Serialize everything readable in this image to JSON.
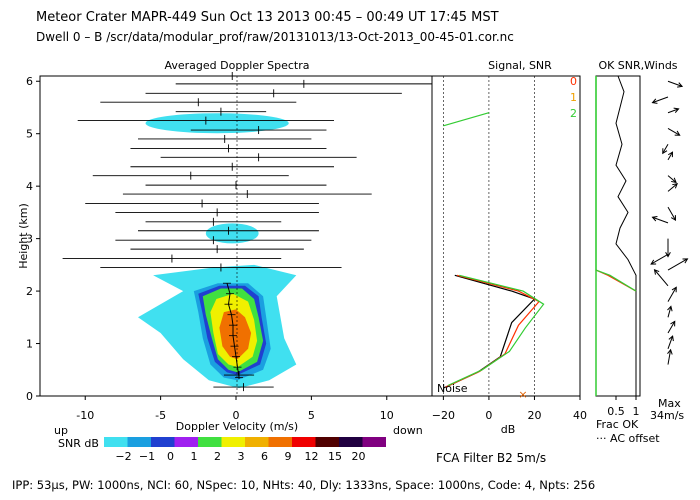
{
  "header": {
    "line1": "Meteor Crater   MAPR-449   Sun Oct 13 2013 00:45 – 00:49 UT 17:45 MST",
    "line2": "Dwell   0 –   B    /scr/data/modular_prof/raw/20131013/13-Oct-2013_00-45-01.cor.nc"
  },
  "footer": {
    "params": "IPP:  53μs,   PW: 1000ns,   NCI:  60,   NSpec: 10,  NHts: 40,   Dly: 1333ns,   Space: 1000ns,   Code: 4,   Npts: 256"
  },
  "colors": {
    "cbar": [
      "#40e0f0",
      "#1a9fe0",
      "#2040d0",
      "#a020f0",
      "#40e040",
      "#f0f000",
      "#f0b000",
      "#f07000",
      "#f00000",
      "#500000",
      "#200040",
      "#800080"
    ],
    "snr0": "#000000",
    "snr1": "#ff3000",
    "snr2": "#33cc33"
  },
  "chart_data": [
    {
      "type": "heatmap",
      "title": "Averaged Doppler Spectra",
      "xlabel": "Doppler Velocity (m/s)",
      "ylabel": "Height (km)",
      "xlim": [
        -13,
        13
      ],
      "ylim": [
        0,
        6.1
      ],
      "xticks": [
        "-10",
        "-5",
        "0",
        "5",
        "10"
      ],
      "yticks": [
        "0",
        "1",
        "2",
        "3",
        "4",
        "5",
        "6"
      ],
      "direction_left": "up",
      "direction_right": "down",
      "colorbar_label": "SNR dB",
      "colorbar_ticks": [
        "−2",
        "−1",
        "0",
        "1",
        "2",
        "3",
        "6",
        "9",
        "12",
        "15",
        "20"
      ],
      "noise_label": "Noise",
      "mean_velocity": [
        {
          "h": 0.35,
          "v": 0.2
        },
        {
          "h": 0.55,
          "v": 0.1
        },
        {
          "h": 0.75,
          "v": 0.0
        },
        {
          "h": 0.95,
          "v": -0.1
        },
        {
          "h": 1.15,
          "v": -0.2
        },
        {
          "h": 1.35,
          "v": -0.2
        },
        {
          "h": 1.55,
          "v": -0.3
        },
        {
          "h": 1.75,
          "v": -0.5
        },
        {
          "h": 1.95,
          "v": -0.4
        },
        {
          "h": 2.15,
          "v": -0.6
        }
      ],
      "velocity_error_bars": [
        {
          "h": 0.17,
          "lo": -1.5,
          "hi": 2.5
        },
        {
          "h": 0.4,
          "lo": -0.8,
          "hi": 1.2
        },
        {
          "h": 2.45,
          "lo": -9.0,
          "hi": 7.0
        },
        {
          "h": 2.62,
          "lo": -11.5,
          "hi": 3.0
        },
        {
          "h": 2.8,
          "lo": -7.0,
          "hi": 4.5
        },
        {
          "h": 2.97,
          "lo": -8.0,
          "hi": 5.0
        },
        {
          "h": 3.15,
          "lo": -6.5,
          "hi": 5.5
        },
        {
          "h": 3.32,
          "lo": -6.0,
          "hi": 3.0
        },
        {
          "h": 3.5,
          "lo": -8.0,
          "hi": 5.5
        },
        {
          "h": 3.67,
          "lo": -10.0,
          "hi": 5.5
        },
        {
          "h": 3.85,
          "lo": -7.5,
          "hi": 9.0
        },
        {
          "h": 4.02,
          "lo": -6.0,
          "hi": 6.0
        },
        {
          "h": 4.2,
          "lo": -9.5,
          "hi": 3.5
        },
        {
          "h": 4.37,
          "lo": -7.0,
          "hi": 6.5
        },
        {
          "h": 4.55,
          "lo": -5.0,
          "hi": 8.0
        },
        {
          "h": 4.72,
          "lo": -7.0,
          "hi": 6.0
        },
        {
          "h": 4.9,
          "lo": -6.5,
          "hi": 5.0
        },
        {
          "h": 5.07,
          "lo": -3.0,
          "hi": 6.0
        },
        {
          "h": 5.25,
          "lo": -10.5,
          "hi": 6.5
        },
        {
          "h": 5.42,
          "lo": -4.0,
          "hi": 2.0
        },
        {
          "h": 5.6,
          "lo": -9.0,
          "hi": 4.0
        },
        {
          "h": 5.77,
          "lo": -6.0,
          "hi": 11.0
        },
        {
          "h": 5.95,
          "lo": -4.0,
          "hi": 13.0
        },
        {
          "h": 6.1,
          "lo": -11.5,
          "hi": 11.0
        }
      ],
      "contours": [
        {
          "snr": "-2",
          "points": [
            [
              0.2,
              0.15
            ],
            [
              2.2,
              0.3
            ],
            [
              4.0,
              0.6
            ],
            [
              3.2,
              1.1
            ],
            [
              2.7,
              1.9
            ],
            [
              4.0,
              2.3
            ],
            [
              1.2,
              2.5
            ],
            [
              -1.5,
              2.45
            ],
            [
              -5.5,
              2.3
            ],
            [
              -3.5,
              2.0
            ],
            [
              -6.5,
              1.5
            ],
            [
              -5.0,
              1.2
            ],
            [
              -3.5,
              0.7
            ],
            [
              -1.8,
              0.3
            ]
          ]
        },
        {
          "snr": "-1",
          "points": [
            [
              0.1,
              0.3
            ],
            [
              1.8,
              0.5
            ],
            [
              2.3,
              0.9
            ],
            [
              2.0,
              1.5
            ],
            [
              1.8,
              1.9
            ],
            [
              0.8,
              2.15
            ],
            [
              -1.2,
              2.15
            ],
            [
              -2.8,
              2.0
            ],
            [
              -2.5,
              1.6
            ],
            [
              -2.2,
              1.1
            ],
            [
              -1.7,
              0.6
            ],
            [
              -0.8,
              0.35
            ]
          ]
        },
        {
          "snr": "0",
          "points": [
            [
              0.1,
              0.4
            ],
            [
              1.6,
              0.6
            ],
            [
              2.0,
              1.0
            ],
            [
              1.7,
              1.5
            ],
            [
              1.5,
              1.9
            ],
            [
              0.6,
              2.1
            ],
            [
              -1.1,
              2.1
            ],
            [
              -2.5,
              1.95
            ],
            [
              -2.2,
              1.55
            ],
            [
              -1.9,
              1.1
            ],
            [
              -1.4,
              0.65
            ],
            [
              -0.6,
              0.45
            ]
          ]
        },
        {
          "snr": "2",
          "points": [
            [
              0.1,
              0.45
            ],
            [
              1.4,
              0.65
            ],
            [
              1.8,
              1.05
            ],
            [
              1.5,
              1.5
            ],
            [
              1.2,
              1.85
            ],
            [
              0.4,
              2.05
            ],
            [
              -1.0,
              2.05
            ],
            [
              -2.2,
              1.9
            ],
            [
              -2.0,
              1.55
            ],
            [
              -1.6,
              1.1
            ],
            [
              -1.2,
              0.7
            ],
            [
              -0.5,
              0.5
            ]
          ]
        },
        {
          "snr": "3",
          "points": [
            [
              0.1,
              0.55
            ],
            [
              1.1,
              0.75
            ],
            [
              1.4,
              1.05
            ],
            [
              1.2,
              1.45
            ],
            [
              0.8,
              1.8
            ],
            [
              -0.2,
              1.95
            ],
            [
              -1.3,
              1.85
            ],
            [
              -1.7,
              1.6
            ],
            [
              -1.5,
              1.2
            ],
            [
              -1.2,
              0.8
            ],
            [
              -0.5,
              0.6
            ]
          ]
        },
        {
          "snr": "6",
          "points": [
            [
              0.1,
              0.7
            ],
            [
              0.8,
              0.9
            ],
            [
              1.0,
              1.2
            ],
            [
              0.6,
              1.5
            ],
            [
              0.0,
              1.65
            ],
            [
              -0.8,
              1.6
            ],
            [
              -1.1,
              1.3
            ],
            [
              -0.9,
              0.95
            ],
            [
              -0.4,
              0.75
            ]
          ]
        }
      ],
      "sky_patches": [
        {
          "h": 5.2,
          "lo": -6.0,
          "hi": 3.5
        },
        {
          "h": 3.1,
          "lo": -2.0,
          "hi": 1.5
        }
      ]
    },
    {
      "type": "line",
      "title": "Signal, SNR",
      "xlabel": "dB",
      "xlim": [
        -25,
        40
      ],
      "xticks": [
        "−20",
        "0",
        "20",
        "40"
      ],
      "ylim": [
        0,
        6.1
      ],
      "legend": [
        "0",
        "1",
        "2"
      ],
      "series": [
        {
          "name": "0",
          "points": [
            [
              -20,
              0.15
            ],
            [
              -5,
              0.45
            ],
            [
              5,
              0.75
            ],
            [
              10,
              1.4
            ],
            [
              20,
              1.85
            ],
            [
              10,
              2.0
            ],
            [
              -15,
              2.3
            ]
          ]
        },
        {
          "name": "1",
          "points": [
            [
              -19,
              0.17
            ],
            [
              -4,
              0.47
            ],
            [
              7,
              0.8
            ],
            [
              13,
              1.35
            ],
            [
              22,
              1.8
            ],
            [
              13,
              2.0
            ],
            [
              -14,
              2.3
            ]
          ]
        },
        {
          "name": "2",
          "points": [
            [
              -18,
              0.2
            ],
            [
              -3,
              0.5
            ],
            [
              9,
              0.85
            ],
            [
              16,
              1.3
            ],
            [
              24,
              1.75
            ],
            [
              15,
              2.0
            ],
            [
              -13,
              2.3
            ],
            [
              -20,
              5.15
            ],
            [
              0,
              5.4
            ]
          ]
        }
      ],
      "gridlines_x": [
        -20,
        0,
        20
      ]
    },
    {
      "type": "line",
      "title": "OK SNR,Winds",
      "xlabel": "Frac OK",
      "xticks": [
        "0.5",
        "1"
      ],
      "xlim": [
        0,
        1.1
      ],
      "ylim": [
        0,
        6.1
      ],
      "ac_offset_label": "··· AC offset",
      "max_label": "Max",
      "max_speed": "34m/s",
      "frac_ok": [
        [
          1.0,
          0.0
        ],
        [
          1.0,
          2.3
        ],
        [
          0.8,
          2.6
        ],
        [
          0.5,
          2.9
        ],
        [
          0.6,
          3.2
        ],
        [
          0.8,
          3.5
        ],
        [
          0.55,
          3.8
        ],
        [
          0.75,
          4.1
        ],
        [
          0.5,
          4.4
        ],
        [
          0.65,
          4.8
        ],
        [
          0.5,
          5.2
        ],
        [
          0.6,
          5.5
        ],
        [
          0.7,
          5.8
        ],
        [
          0.55,
          6.1
        ]
      ],
      "snr_lines": [
        {
          "name": "1",
          "points": [
            [
              1.0,
              2.0
            ],
            [
              0.3,
              2.3
            ],
            [
              0.0,
              2.4
            ]
          ]
        },
        {
          "name": "2",
          "points": [
            [
              1.0,
              2.0
            ],
            [
              0.35,
              2.3
            ],
            [
              0.0,
              2.4
            ],
            [
              0.0,
              6.1
            ]
          ]
        }
      ],
      "wind_barbs": [
        {
          "h": 0.6,
          "dir_deg": 80,
          "speed": 20
        },
        {
          "h": 0.9,
          "dir_deg": 70,
          "speed": 18
        },
        {
          "h": 1.2,
          "dir_deg": 60,
          "speed": 18
        },
        {
          "h": 1.5,
          "dir_deg": 75,
          "speed": 15
        },
        {
          "h": 1.8,
          "dir_deg": 60,
          "speed": 22
        },
        {
          "h": 2.1,
          "dir_deg": 130,
          "speed": 28
        },
        {
          "h": 2.4,
          "dir_deg": 30,
          "speed": 30
        },
        {
          "h": 2.7,
          "dir_deg": 210,
          "speed": 26
        },
        {
          "h": 3.0,
          "dir_deg": 270,
          "speed": 24
        },
        {
          "h": 3.3,
          "dir_deg": 160,
          "speed": 22
        },
        {
          "h": 3.6,
          "dir_deg": 300,
          "speed": 20
        },
        {
          "h": 3.9,
          "dir_deg": 40,
          "speed": 16
        },
        {
          "h": 4.2,
          "dir_deg": 320,
          "speed": 14
        },
        {
          "h": 4.5,
          "dir_deg": 60,
          "speed": 12
        },
        {
          "h": 4.8,
          "dir_deg": 240,
          "speed": 14
        },
        {
          "h": 5.1,
          "dir_deg": 330,
          "speed": 18
        },
        {
          "h": 5.4,
          "dir_deg": 20,
          "speed": 15
        },
        {
          "h": 5.7,
          "dir_deg": 200,
          "speed": 22
        },
        {
          "h": 6.0,
          "dir_deg": 340,
          "speed": 20
        }
      ]
    }
  ],
  "filter_label": "FCA Filter B2   5m/s"
}
